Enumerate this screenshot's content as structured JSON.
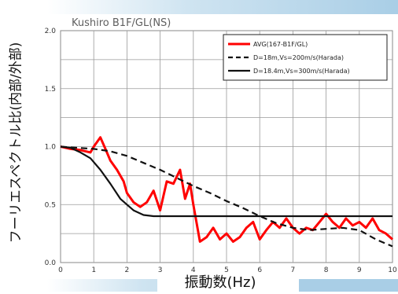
{
  "chart_data": {
    "type": "line",
    "title": "Kushiro B1F/GL(NS)",
    "xlabel": "振動数(Hz)",
    "ylabel": "フーリエスペクトル比(内部/外部)",
    "xlim": [
      0,
      10
    ],
    "ylim": [
      0,
      2.0
    ],
    "x_ticks": [
      "0",
      "1",
      "2",
      "3",
      "4",
      "5",
      "6",
      "7",
      "8",
      "9",
      "10"
    ],
    "y_ticks": [
      "0.0",
      "0.5",
      "1.0",
      "1.5",
      "2.0"
    ],
    "grid": true,
    "legend_position": "top-right",
    "series": [
      {
        "name": "AVG(167-B1F/GL)",
        "color": "#ff0000",
        "style": "solid",
        "x": [
          0.0,
          0.3,
          0.6,
          0.9,
          1.0,
          1.2,
          1.35,
          1.5,
          1.7,
          1.9,
          2.0,
          2.2,
          2.4,
          2.6,
          2.8,
          3.0,
          3.2,
          3.4,
          3.6,
          3.75,
          3.9,
          4.0,
          4.2,
          4.4,
          4.6,
          4.8,
          5.0,
          5.2,
          5.4,
          5.6,
          5.8,
          6.0,
          6.2,
          6.4,
          6.6,
          6.8,
          7.0,
          7.2,
          7.4,
          7.6,
          7.8,
          8.0,
          8.2,
          8.4,
          8.6,
          8.8,
          9.0,
          9.2,
          9.4,
          9.6,
          9.8,
          10.0
        ],
        "y": [
          1.0,
          0.98,
          0.97,
          0.95,
          1.0,
          1.08,
          0.98,
          0.88,
          0.8,
          0.7,
          0.6,
          0.52,
          0.48,
          0.52,
          0.62,
          0.45,
          0.7,
          0.68,
          0.8,
          0.55,
          0.68,
          0.5,
          0.18,
          0.22,
          0.3,
          0.2,
          0.25,
          0.18,
          0.22,
          0.3,
          0.35,
          0.2,
          0.28,
          0.35,
          0.3,
          0.38,
          0.3,
          0.25,
          0.3,
          0.28,
          0.35,
          0.42,
          0.35,
          0.3,
          0.38,
          0.32,
          0.35,
          0.3,
          0.38,
          0.28,
          0.25,
          0.2
        ]
      },
      {
        "name": "D=18m,Vs=200m/s(Harada)",
        "color": "#111111",
        "style": "dashed",
        "x": [
          0.0,
          0.5,
          1.0,
          1.5,
          2.0,
          2.5,
          3.0,
          3.5,
          4.0,
          4.5,
          5.0,
          5.5,
          6.0,
          6.5,
          7.0,
          7.5,
          8.0,
          8.5,
          9.0,
          9.5,
          10.0
        ],
        "y": [
          1.0,
          0.99,
          0.98,
          0.96,
          0.92,
          0.86,
          0.8,
          0.73,
          0.66,
          0.6,
          0.53,
          0.47,
          0.4,
          0.34,
          0.3,
          0.28,
          0.29,
          0.3,
          0.28,
          0.2,
          0.14
        ]
      },
      {
        "name": "D=18.4m,Vs=300m/s(Harada)",
        "color": "#111111",
        "style": "solid",
        "x": [
          0.0,
          0.3,
          0.6,
          0.9,
          1.2,
          1.5,
          1.8,
          2.0,
          2.2,
          2.5,
          2.8,
          3.0,
          3.5,
          4.0,
          5.0,
          6.0,
          7.0,
          8.0,
          9.0,
          10.0
        ],
        "y": [
          1.0,
          0.99,
          0.95,
          0.9,
          0.8,
          0.68,
          0.55,
          0.5,
          0.45,
          0.41,
          0.4,
          0.4,
          0.4,
          0.4,
          0.4,
          0.4,
          0.4,
          0.4,
          0.4,
          0.4
        ]
      }
    ]
  }
}
